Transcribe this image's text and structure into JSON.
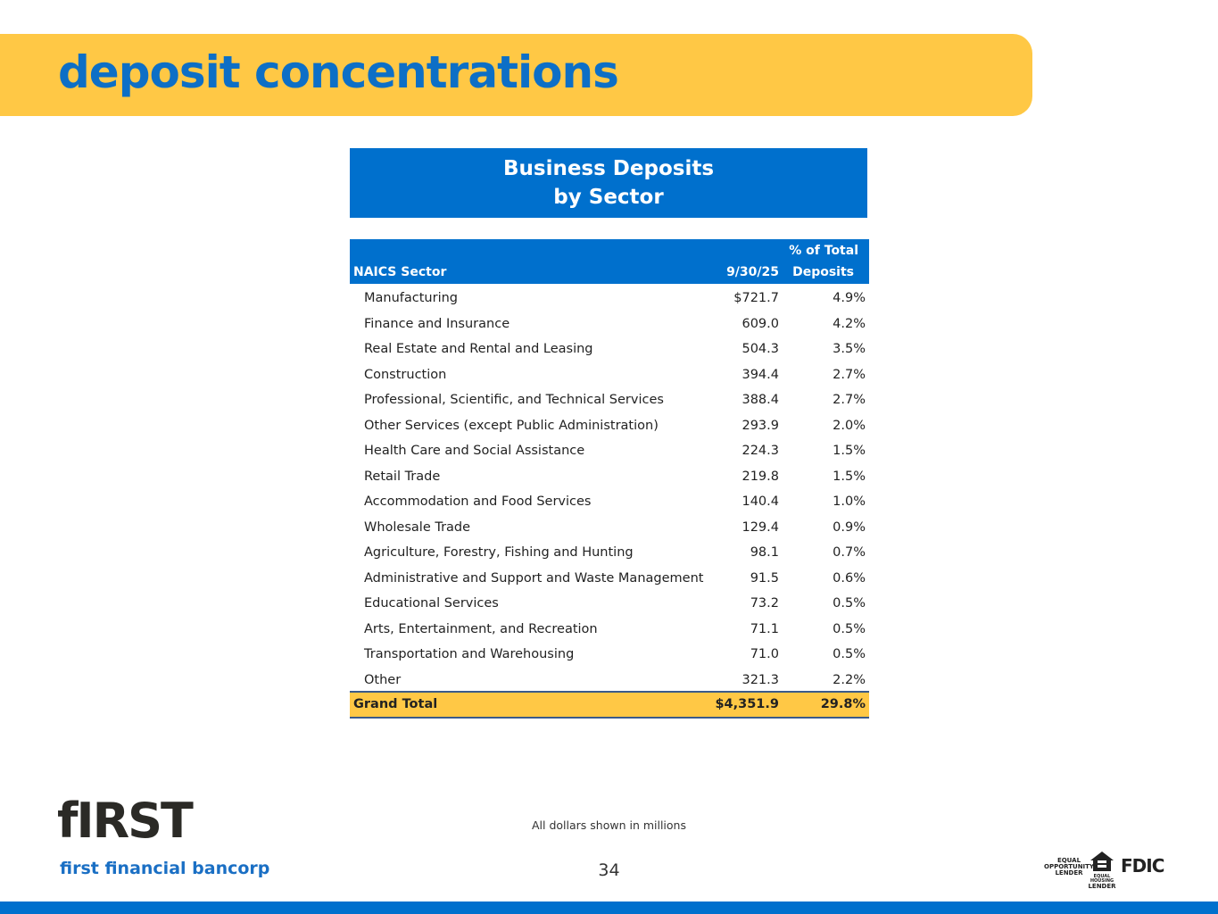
{
  "header": {
    "title": "deposit concentrations"
  },
  "table": {
    "title_lines": [
      "Business Deposits",
      "by Sector"
    ],
    "columns": [
      "NAICS Sector",
      "9/30/25",
      [
        "% of Total",
        "Deposits"
      ]
    ],
    "rows": [
      [
        "Manufacturing",
        "$721.7",
        "4.9%"
      ],
      [
        "Finance and Insurance",
        "609.0",
        "4.2%"
      ],
      [
        "Real Estate and Rental and Leasing",
        "504.3",
        "3.5%"
      ],
      [
        "Construction",
        "394.4",
        "2.7%"
      ],
      [
        "Professional, Scientific, and Technical Services",
        "388.4",
        "2.7%"
      ],
      [
        "Other Services (except Public Administration)",
        "293.9",
        "2.0%"
      ],
      [
        "Health Care and Social Assistance",
        "224.3",
        "1.5%"
      ],
      [
        "Retail Trade",
        "219.8",
        "1.5%"
      ],
      [
        "Accommodation and Food Services",
        "140.4",
        "1.0%"
      ],
      [
        "Wholesale Trade",
        "129.4",
        "0.9%"
      ],
      [
        "Agriculture, Forestry, Fishing and Hunting",
        "98.1",
        "0.7%"
      ],
      [
        "Administrative and Support and Waste Management",
        "91.5",
        "0.6%"
      ],
      [
        "Educational Services",
        "73.2",
        "0.5%"
      ],
      [
        "Arts, Entertainment, and Recreation",
        "71.1",
        "0.5%"
      ],
      [
        "Transportation and Warehousing",
        "71.0",
        "0.5%"
      ],
      [
        "Other",
        "321.3",
        "2.2%"
      ]
    ],
    "total": [
      "Grand Total",
      "$4,351.9",
      "29.8%"
    ]
  },
  "footer": {
    "note": "All dollars shown in millions",
    "page": "34",
    "logo": "fIRST",
    "brand": "first financial bancorp",
    "badges": [
      [
        "EQUAL",
        "OPPORTUNITY",
        "LENDER"
      ],
      [
        "EQUAL HOUSING",
        "LENDER"
      ],
      "FDIC"
    ]
  }
}
